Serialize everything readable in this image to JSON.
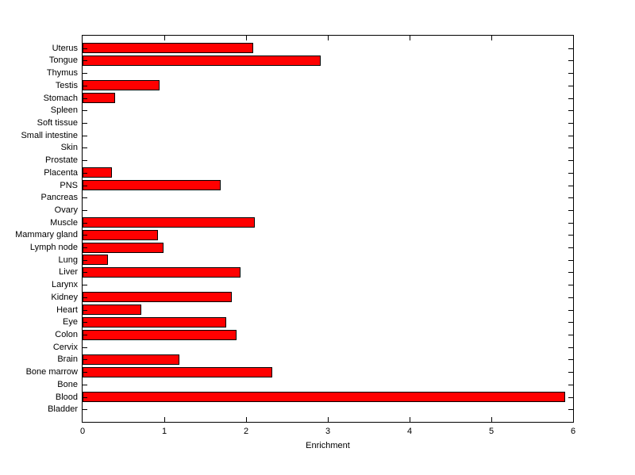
{
  "chart_data": {
    "type": "bar",
    "orientation": "horizontal",
    "title": "",
    "xlabel": "Enrichment",
    "ylabel": "",
    "xlim": [
      0,
      6
    ],
    "xticks": [
      0,
      1,
      2,
      3,
      4,
      5,
      6
    ],
    "grid": false,
    "legend": false,
    "bar_color": "#ff0000",
    "bar_edge_color": "#000000",
    "axis_color": "#000000",
    "background_color": "#ffffff",
    "categories_top_to_bottom": [
      "Uterus",
      "Tongue",
      "Thymus",
      "Testis",
      "Stomach",
      "Spleen",
      "Soft tissue",
      "Small intestine",
      "Skin",
      "Prostate",
      "Placenta",
      "PNS",
      "Pancreas",
      "Ovary",
      "Muscle",
      "Mammary gland",
      "Lymph node",
      "Lung",
      "Liver",
      "Larynx",
      "Kidney",
      "Heart",
      "Eye",
      "Colon",
      "Cervix",
      "Brain",
      "Bone marrow",
      "Bone",
      "Blood",
      "Bladder"
    ],
    "values": [
      2.09,
      2.91,
      0,
      0.94,
      0.4,
      0,
      0,
      0,
      0,
      0,
      0.36,
      1.69,
      0,
      0,
      2.11,
      0.92,
      0.99,
      0.31,
      1.93,
      0,
      1.83,
      0.72,
      1.76,
      1.88,
      0,
      1.18,
      2.32,
      0,
      5.9,
      0
    ]
  }
}
